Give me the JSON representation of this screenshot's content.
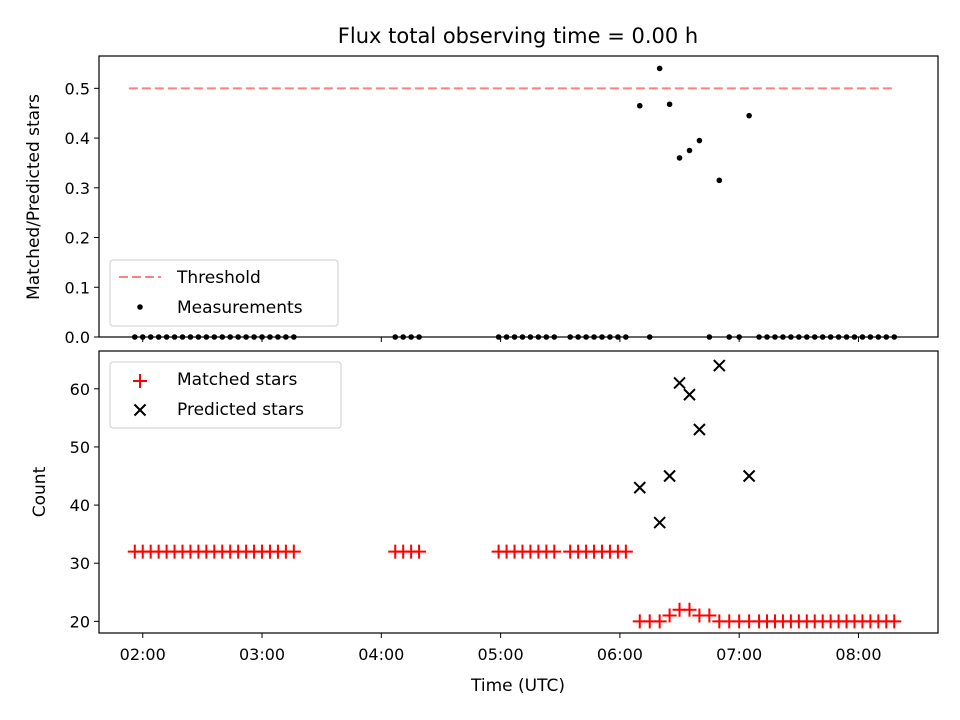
{
  "chart_data": [
    {
      "type": "scatter",
      "title": "Flux total observing time = 0.00 h",
      "xlabel": "",
      "ylabel": "Matched/Predicted stars",
      "ylim": [
        0,
        0.565
      ],
      "yticks": [
        0.0,
        0.1,
        0.2,
        0.3,
        0.4,
        0.5
      ],
      "ytick_labels": [
        "0.0",
        "0.1",
        "0.2",
        "0.3",
        "0.4",
        "0.5"
      ],
      "xlim": [
        "01:38",
        "08:40"
      ],
      "xticks": [
        "02:00",
        "03:00",
        "04:00",
        "05:00",
        "06:00",
        "07:00",
        "08:00"
      ],
      "grid": false,
      "legend": "lower-left",
      "threshold": {
        "name": "Threshold",
        "x": [
          "01:53",
          "08:18"
        ],
        "y": 0.5,
        "color": "#ff8080",
        "style": "dashed"
      },
      "series": [
        {
          "name": "Measurements",
          "color": "#000000",
          "marker": "dot",
          "points": [
            [
              "01:56",
              0
            ],
            [
              "02:00",
              0
            ],
            [
              "02:04",
              0
            ],
            [
              "02:08",
              0
            ],
            [
              "02:12",
              0
            ],
            [
              "02:16",
              0
            ],
            [
              "02:20",
              0
            ],
            [
              "02:24",
              0
            ],
            [
              "02:28",
              0
            ],
            [
              "02:32",
              0
            ],
            [
              "02:36",
              0
            ],
            [
              "02:40",
              0
            ],
            [
              "02:44",
              0
            ],
            [
              "02:48",
              0
            ],
            [
              "02:52",
              0
            ],
            [
              "02:56",
              0
            ],
            [
              "03:00",
              0
            ],
            [
              "03:04",
              0
            ],
            [
              "03:08",
              0
            ],
            [
              "03:12",
              0
            ],
            [
              "03:16",
              0
            ],
            [
              "04:07",
              0
            ],
            [
              "04:11",
              0
            ],
            [
              "04:15",
              0
            ],
            [
              "04:19",
              0
            ],
            [
              "04:59",
              0
            ],
            [
              "05:03",
              0
            ],
            [
              "05:07",
              0
            ],
            [
              "05:11",
              0
            ],
            [
              "05:15",
              0
            ],
            [
              "05:19",
              0
            ],
            [
              "05:23",
              0
            ],
            [
              "05:27",
              0
            ],
            [
              "05:35",
              0
            ],
            [
              "05:39",
              0
            ],
            [
              "05:43",
              0
            ],
            [
              "05:47",
              0
            ],
            [
              "05:51",
              0
            ],
            [
              "05:55",
              0
            ],
            [
              "05:59",
              0
            ],
            [
              "06:03",
              0
            ],
            [
              "06:10",
              0.465
            ],
            [
              "06:15",
              0
            ],
            [
              "06:20",
              0.54
            ],
            [
              "06:25",
              0.468
            ],
            [
              "06:30",
              0.36
            ],
            [
              "06:35",
              0.375
            ],
            [
              "06:40",
              0.395
            ],
            [
              "06:45",
              0
            ],
            [
              "06:50",
              0.315
            ],
            [
              "06:55",
              0
            ],
            [
              "07:00",
              0
            ],
            [
              "07:05",
              0.445
            ],
            [
              "07:10",
              0
            ],
            [
              "07:14",
              0
            ],
            [
              "07:18",
              0
            ],
            [
              "07:22",
              0
            ],
            [
              "07:26",
              0
            ],
            [
              "07:30",
              0
            ],
            [
              "07:34",
              0
            ],
            [
              "07:38",
              0
            ],
            [
              "07:42",
              0
            ],
            [
              "07:46",
              0
            ],
            [
              "07:50",
              0
            ],
            [
              "07:54",
              0
            ],
            [
              "07:58",
              0
            ],
            [
              "08:02",
              0
            ],
            [
              "08:06",
              0
            ],
            [
              "08:10",
              0
            ],
            [
              "08:14",
              0
            ],
            [
              "08:18",
              0
            ]
          ]
        }
      ]
    },
    {
      "type": "scatter",
      "title": "",
      "xlabel": "Time (UTC)",
      "ylabel": "Count",
      "ylim": [
        18,
        66.5
      ],
      "yticks": [
        20,
        30,
        40,
        50,
        60
      ],
      "ytick_labels": [
        "20",
        "30",
        "40",
        "50",
        "60"
      ],
      "xlim": [
        "01:38",
        "08:40"
      ],
      "xticks": [
        "02:00",
        "03:00",
        "04:00",
        "05:00",
        "06:00",
        "07:00",
        "08:00"
      ],
      "xtick_labels": [
        "02:00",
        "03:00",
        "04:00",
        "05:00",
        "06:00",
        "07:00",
        "08:00"
      ],
      "grid": false,
      "legend": "upper-left",
      "series": [
        {
          "name": "Matched stars",
          "color": "#ff0000",
          "marker": "plus",
          "points": [
            [
              "01:56",
              32
            ],
            [
              "02:00",
              32
            ],
            [
              "02:04",
              32
            ],
            [
              "02:08",
              32
            ],
            [
              "02:12",
              32
            ],
            [
              "02:16",
              32
            ],
            [
              "02:20",
              32
            ],
            [
              "02:24",
              32
            ],
            [
              "02:28",
              32
            ],
            [
              "02:32",
              32
            ],
            [
              "02:36",
              32
            ],
            [
              "02:40",
              32
            ],
            [
              "02:44",
              32
            ],
            [
              "02:48",
              32
            ],
            [
              "02:52",
              32
            ],
            [
              "02:56",
              32
            ],
            [
              "03:00",
              32
            ],
            [
              "03:04",
              32
            ],
            [
              "03:08",
              32
            ],
            [
              "03:12",
              32
            ],
            [
              "03:16",
              32
            ],
            [
              "04:07",
              32
            ],
            [
              "04:11",
              32
            ],
            [
              "04:15",
              32
            ],
            [
              "04:19",
              32
            ],
            [
              "04:59",
              32
            ],
            [
              "05:03",
              32
            ],
            [
              "05:07",
              32
            ],
            [
              "05:11",
              32
            ],
            [
              "05:15",
              32
            ],
            [
              "05:19",
              32
            ],
            [
              "05:23",
              32
            ],
            [
              "05:27",
              32
            ],
            [
              "05:35",
              32
            ],
            [
              "05:39",
              32
            ],
            [
              "05:43",
              32
            ],
            [
              "05:47",
              32
            ],
            [
              "05:51",
              32
            ],
            [
              "05:55",
              32
            ],
            [
              "05:59",
              32
            ],
            [
              "06:03",
              32
            ],
            [
              "06:10",
              20
            ],
            [
              "06:15",
              20
            ],
            [
              "06:20",
              20
            ],
            [
              "06:25",
              21
            ],
            [
              "06:30",
              22
            ],
            [
              "06:35",
              22
            ],
            [
              "06:40",
              21
            ],
            [
              "06:45",
              21
            ],
            [
              "06:50",
              20
            ],
            [
              "06:55",
              20
            ],
            [
              "07:00",
              20
            ],
            [
              "07:05",
              20
            ],
            [
              "07:10",
              20
            ],
            [
              "07:14",
              20
            ],
            [
              "07:18",
              20
            ],
            [
              "07:22",
              20
            ],
            [
              "07:26",
              20
            ],
            [
              "07:30",
              20
            ],
            [
              "07:34",
              20
            ],
            [
              "07:38",
              20
            ],
            [
              "07:42",
              20
            ],
            [
              "07:46",
              20
            ],
            [
              "07:50",
              20
            ],
            [
              "07:54",
              20
            ],
            [
              "07:58",
              20
            ],
            [
              "08:02",
              20
            ],
            [
              "08:06",
              20
            ],
            [
              "08:10",
              20
            ],
            [
              "08:14",
              20
            ],
            [
              "08:18",
              20
            ]
          ]
        },
        {
          "name": "Predicted stars",
          "color": "#000000",
          "marker": "x",
          "points": [
            [
              "06:10",
              43
            ],
            [
              "06:20",
              37
            ],
            [
              "06:25",
              45
            ],
            [
              "06:30",
              61
            ],
            [
              "06:35",
              59
            ],
            [
              "06:40",
              53
            ],
            [
              "06:50",
              64
            ],
            [
              "07:05",
              45
            ]
          ]
        }
      ]
    }
  ]
}
